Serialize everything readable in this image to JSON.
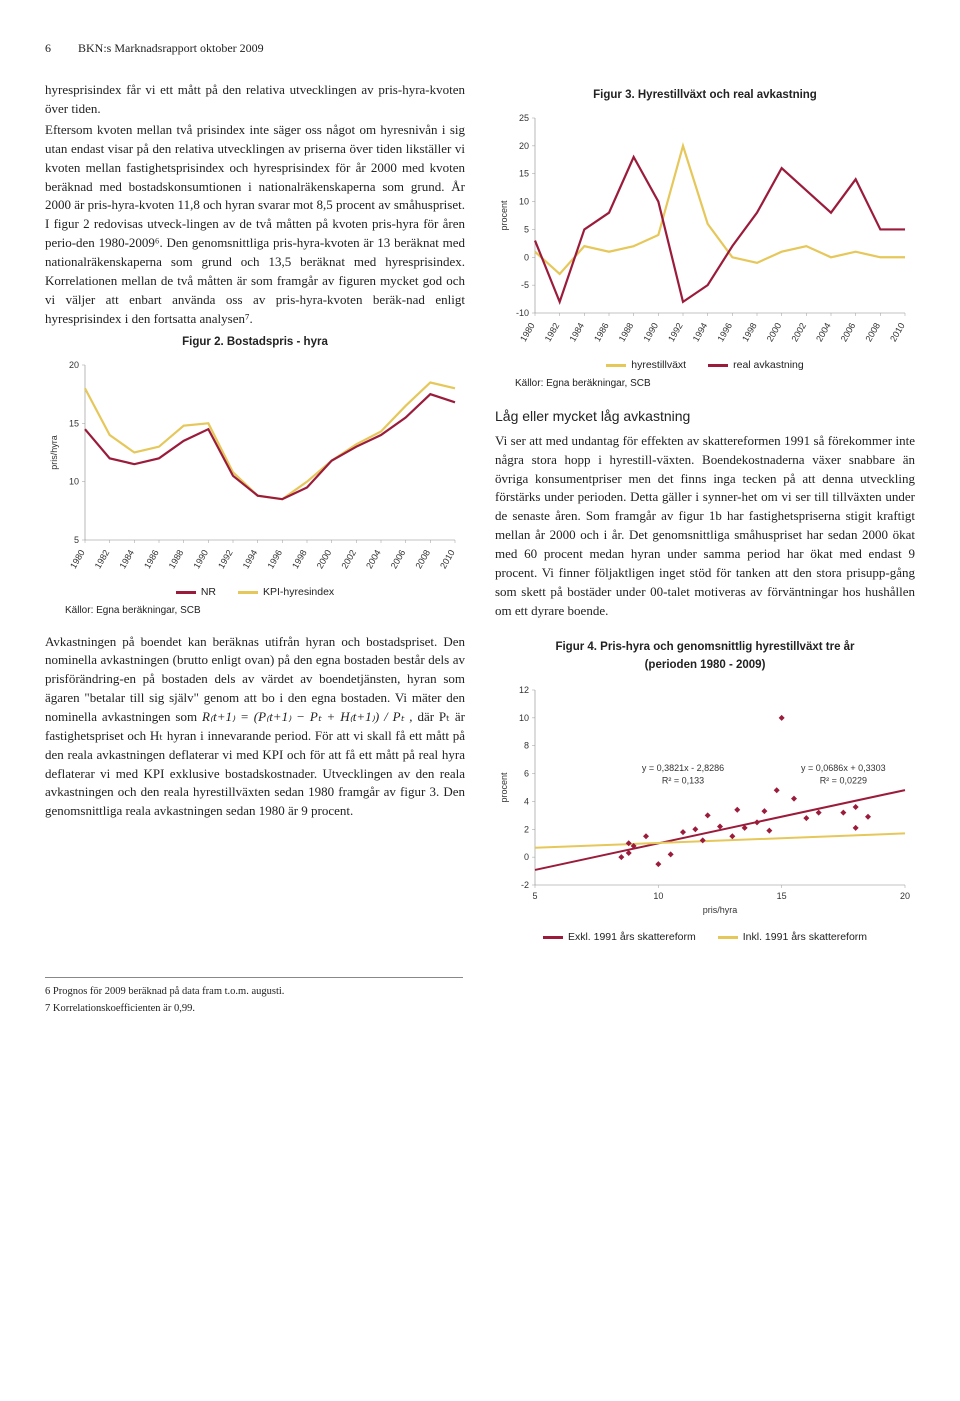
{
  "header": {
    "page_number": "6",
    "running_title": "BKN:s Marknadsrapport oktober 2009"
  },
  "left_col": {
    "para1": "hyresprisindex får vi ett mått på den relativa utvecklingen av pris-hyra-kvoten över tiden.",
    "para2": "Eftersom kvoten mellan två prisindex inte säger oss något om hyresnivån i sig utan endast visar på den relativa utvecklingen av priserna över tiden likställer vi kvoten mellan fastighetsprisindex och hyresprisindex för år 2000 med kvoten beräknad med bostadskonsumtionen i nationalräkenskaperna som grund. År 2000 är pris-hyra-kvoten 11,8 och hyran svarar mot 8,5 procent av småhuspriset. I figur 2 redovisas utveck-lingen av de två måtten på kvoten pris-hyra för åren perio-den 1980-2009⁶. Den genomsnittliga pris-hyra-kvoten är 13 beräknat med nationalräkenskaperna som grund och 13,5 beräknat med hyresprisindex. Korrelationen mellan de två måtten är som framgår av figuren mycket god och vi väljer att enbart använda oss av pris-hyra-kvoten beräk-nad enligt hyresprisindex i den fortsatta analysen⁷.",
    "para3_a": "Avkastningen på boendet kan beräknas utifrån hyran och bostadspriset. Den nominella avkastningen (brutto enligt ovan) på den egna bostaden består dels av prisförändring-en på bostaden dels av värdet av boendetjänsten, hyran som ägaren \"betalar till sig själv\" genom att bo i den egna bostaden. Vi mäter den nominella avkastningen som ",
    "para3_eq": "R₍t+1₎ = (P₍t+1₎ − Pₜ + H₍t+1₎) / Pₜ ,",
    "para3_b": " där Pₜ är fastighetspriset och Hₜ hyran i innevarande period. För att vi skall få ett mått på den reala avkastningen deflaterar vi med KPI och för att få ett mått på real hyra deflaterar vi med KPI exklusive bostadskostnader. Utvecklingen av den reala avkastningen och den reala hyrestillväxten sedan 1980 framgår av figur 3. Den genomsnittliga reala avkastningen sedan 1980 är 9 procent."
  },
  "right_col": {
    "section_heading": "Låg eller mycket låg avkastning",
    "para1": "Vi ser att med undantag för effekten av skattereformen 1991 så förekommer inte några stora hopp i hyrestill-växten. Boendekostnaderna växer snabbare än övriga konsumentpriser men det finns inga tecken på att denna utveckling förstärks under perioden. Detta gäller i synner-het om vi ser till tillväxten under de senaste åren. Som framgår av figur 1b har fastighetspriserna stigit kraftigt mellan år 2000 och i år. Det genomsnittliga småhuspriset har sedan 2000 ökat med 60 procent medan hyran under samma period har ökat med endast 9 procent. Vi finner följaktligen inget stöd för tanken att den stora prisupp-gång som skett på bostäder under 00-talet motiveras av förväntningar hos hushållen om ett dyrare boende."
  },
  "figure2": {
    "title": "Figur 2. Bostadspris - hyra",
    "type": "line",
    "x_years": [
      1980,
      1982,
      1984,
      1986,
      1988,
      1990,
      1992,
      1994,
      1996,
      1998,
      2000,
      2002,
      2004,
      2006,
      2008,
      2010
    ],
    "ylim": [
      5,
      20
    ],
    "yticks": [
      5,
      10,
      15,
      20
    ],
    "y_label": "pris/hyra",
    "series": {
      "NR": {
        "color": "#9b1b3b",
        "values": [
          14.5,
          12.0,
          11.5,
          12.0,
          13.5,
          14.5,
          10.5,
          8.8,
          8.5,
          9.5,
          11.8,
          13.0,
          14.0,
          15.5,
          17.5,
          16.8
        ]
      },
      "KPI-hyresindex": {
        "color": "#e6c75a",
        "values": [
          18.0,
          14.0,
          12.5,
          13.0,
          14.8,
          15.0,
          10.8,
          8.8,
          8.5,
          10.0,
          11.8,
          13.2,
          14.3,
          16.5,
          18.5,
          18.0
        ]
      }
    },
    "legend": [
      {
        "label": "NR",
        "color": "#9b1b3b"
      },
      {
        "label": "KPI-hyresindex",
        "color": "#e6c75a"
      }
    ],
    "source": "Källor: Egna beräkningar, SCB"
  },
  "figure3": {
    "title": "Figur 3. Hyrestillväxt och real avkastning",
    "type": "line",
    "x_years": [
      1980,
      1982,
      1984,
      1986,
      1988,
      1990,
      1992,
      1994,
      1996,
      1998,
      2000,
      2002,
      2004,
      2006,
      2008,
      2010
    ],
    "ylim": [
      -10,
      25
    ],
    "yticks": [
      -10,
      -5,
      0,
      5,
      10,
      15,
      20,
      25
    ],
    "y_label": "procent",
    "series": {
      "hyrestillvaxt": {
        "color": "#e6c75a",
        "values": [
          1,
          -3,
          2,
          1,
          2,
          4,
          20,
          6,
          0,
          -1,
          1,
          2,
          0,
          1,
          0,
          0
        ]
      },
      "real_avkastning": {
        "color": "#9b1b3b",
        "values": [
          3,
          -8,
          5,
          8,
          18,
          10,
          -8,
          -5,
          2,
          8,
          16,
          12,
          8,
          14,
          5,
          5
        ]
      }
    },
    "legend": [
      {
        "label": "hyrestillväxt",
        "color": "#e6c75a"
      },
      {
        "label": "real avkastning",
        "color": "#9b1b3b"
      }
    ],
    "source": "Källor: Egna beräkningar, SCB"
  },
  "figure4": {
    "title": "Figur 4. Pris-hyra och genomsnittlig hyrestillväxt tre år",
    "subtitle": "(perioden 1980 - 2009)",
    "type": "scatter",
    "x_label": "pris/hyra",
    "y_label": "procent",
    "xlim": [
      5,
      20
    ],
    "xticks": [
      5,
      10,
      15,
      20
    ],
    "ylim": [
      -2,
      12
    ],
    "yticks": [
      -2,
      0,
      2,
      4,
      6,
      8,
      10,
      12
    ],
    "eq_excl": "y = 0,3821x - 2,8286",
    "r2_excl": "R² = 0,133",
    "eq_incl": "y = 0,0686x + 0,3303",
    "r2_incl": "R² = 0,0229",
    "marker_color": "#9b1b3b",
    "line_excl_color": "#9b1b3b",
    "line_incl_color": "#e6c75a",
    "points": [
      [
        8.5,
        0
      ],
      [
        8.8,
        1
      ],
      [
        8.8,
        0.3
      ],
      [
        9.0,
        0.8
      ],
      [
        9.5,
        1.5
      ],
      [
        10.0,
        -0.5
      ],
      [
        10.5,
        0.2
      ],
      [
        11.0,
        1.8
      ],
      [
        11.5,
        2.0
      ],
      [
        11.8,
        1.2
      ],
      [
        12.0,
        3.0
      ],
      [
        12.5,
        2.2
      ],
      [
        13.0,
        1.5
      ],
      [
        13.2,
        3.4
      ],
      [
        13.5,
        2.1
      ],
      [
        14.0,
        2.5
      ],
      [
        14.3,
        3.3
      ],
      [
        14.5,
        1.9
      ],
      [
        14.8,
        4.8
      ],
      [
        15.0,
        10.0
      ],
      [
        15.5,
        4.2
      ],
      [
        16.0,
        2.8
      ],
      [
        16.5,
        3.2
      ],
      [
        17.5,
        3.2
      ],
      [
        18.0,
        2.1
      ],
      [
        18.0,
        3.6
      ],
      [
        18.5,
        2.9
      ]
    ],
    "legend": [
      {
        "label": "Exkl. 1991 års skattereform",
        "color": "#9b1b3b"
      },
      {
        "label": "Inkl. 1991 års skattereform",
        "color": "#e6c75a"
      }
    ]
  },
  "footnotes": {
    "fn6": "6  Prognos för 2009 beräknad på data fram t.o.m. augusti.",
    "fn7": "7  Korrelationskoefficienten är 0,99."
  }
}
